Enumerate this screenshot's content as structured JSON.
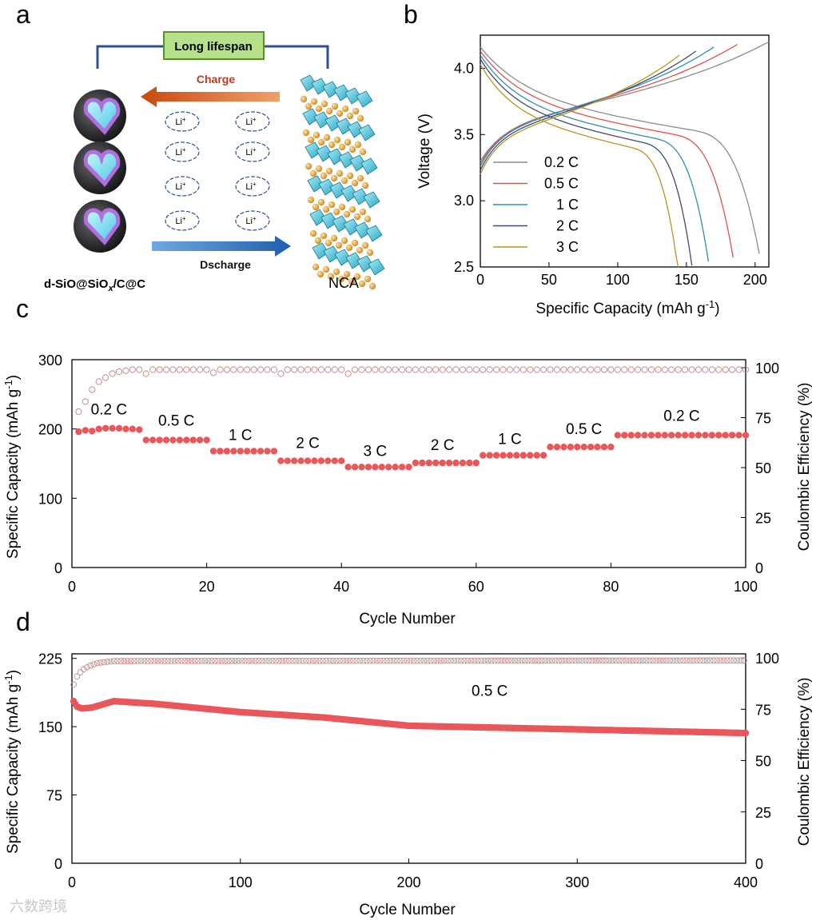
{
  "panels": {
    "a": "a",
    "b": "b",
    "c": "c",
    "d": "d"
  },
  "schematic": {
    "top_box": "Long lifespan",
    "charge_label": "Charge",
    "discharge_label": "Dscharge",
    "li_label": "Li",
    "li_superscript": "+",
    "anode_label_prefix": "d-SiO@SiO",
    "anode_label_sub": "x",
    "anode_label_suffix": "/C@C",
    "cathode_label": "NCA",
    "colors": {
      "charge": "#d55a1b",
      "discharge": "#2e75c0",
      "box_fill": "#b6e08a",
      "box_edge": "#5b8f2c",
      "connector": "#2f4f8f"
    }
  },
  "watermark": "六数跨境",
  "chart_data": [
    {
      "id": "b",
      "type": "line",
      "xlabel": "Specific Capacity (mAh g",
      "xlabel_sup": "-1",
      "xlabel_end": ")",
      "ylabel": "Voltage (V)",
      "xlim": [
        0,
        210
      ],
      "ylim": [
        2.5,
        4.25
      ],
      "xticks": [
        0,
        50,
        100,
        150,
        200
      ],
      "yticks": [
        2.5,
        3.0,
        3.5,
        4.0
      ],
      "ytick_labels": [
        "2.5",
        "3.0",
        "3.5",
        "4.0"
      ],
      "legend_position": "left",
      "series": [
        {
          "name": "0.2 C",
          "color": "#8c8c8c",
          "charge_cap": 210,
          "discharge_cap": 203,
          "v_charge_start": 3.3,
          "v_discharge_start": 4.16
        },
        {
          "name": "0.5 C",
          "color": "#d9534f",
          "charge_cap": 187,
          "discharge_cap": 184,
          "v_charge_start": 3.28,
          "v_discharge_start": 4.13
        },
        {
          "name": "1 C",
          "color": "#2f8fb5",
          "charge_cap": 170,
          "discharge_cap": 166,
          "v_charge_start": 3.26,
          "v_discharge_start": 4.1
        },
        {
          "name": "2 C",
          "color": "#3c4a78",
          "charge_cap": 157,
          "discharge_cap": 154,
          "v_charge_start": 3.23,
          "v_discharge_start": 4.07
        },
        {
          "name": "3 C",
          "color": "#b89320",
          "charge_cap": 145,
          "discharge_cap": 144,
          "v_charge_start": 3.2,
          "v_discharge_start": 4.03
        }
      ]
    },
    {
      "id": "c",
      "type": "scatter",
      "xlabel": "Cycle Number",
      "ylabel": "Specific Capacity (mAh g",
      "ylabel_sup": "-1",
      "ylabel_end": ")",
      "y2label": "Coulombic Efficiency (%)",
      "xlim": [
        0,
        100
      ],
      "ylim": [
        0,
        300
      ],
      "y2lim": [
        0,
        104
      ],
      "xticks": [
        0,
        20,
        40,
        60,
        80,
        100
      ],
      "yticks": [
        0,
        100,
        200,
        300
      ],
      "y2ticks": [
        0,
        25,
        50,
        75,
        100
      ],
      "segments": [
        {
          "rate": "0.2 C",
          "start": 1,
          "end": 10,
          "capacity": 200
        },
        {
          "rate": "0.5 C",
          "start": 11,
          "end": 20,
          "capacity": 184
        },
        {
          "rate": "1 C",
          "start": 21,
          "end": 30,
          "capacity": 168
        },
        {
          "rate": "2 C",
          "start": 31,
          "end": 40,
          "capacity": 154
        },
        {
          "rate": "3 C",
          "start": 41,
          "end": 50,
          "capacity": 145
        },
        {
          "rate": "2 C",
          "start": 51,
          "end": 60,
          "capacity": 151
        },
        {
          "rate": "1 C",
          "start": 61,
          "end": 70,
          "capacity": 162
        },
        {
          "rate": "0.5 C",
          "start": 71,
          "end": 80,
          "capacity": 174
        },
        {
          "rate": "0.2 C",
          "start": 81,
          "end": 100,
          "capacity": 191
        }
      ],
      "capacity_series": [
        {
          "x": 1,
          "y": 196
        },
        {
          "x": 2,
          "y": 198
        },
        {
          "x": 3,
          "y": 197
        },
        {
          "x": 4,
          "y": 200
        },
        {
          "x": 5,
          "y": 201
        },
        {
          "x": 6,
          "y": 201
        },
        {
          "x": 7,
          "y": 201
        },
        {
          "x": 8,
          "y": 200
        },
        {
          "x": 9,
          "y": 200
        },
        {
          "x": 10,
          "y": 199
        }
      ],
      "ce_series": [
        {
          "x": 1,
          "y": 78
        },
        {
          "x": 2,
          "y": 83
        },
        {
          "x": 3,
          "y": 89
        },
        {
          "x": 4,
          "y": 93
        },
        {
          "x": 5,
          "y": 95
        },
        {
          "x": 6,
          "y": 97
        },
        {
          "x": 7,
          "y": 98
        },
        {
          "x": 8,
          "y": 98.5
        },
        {
          "x": 9,
          "y": 99
        },
        {
          "x": 10,
          "y": 99
        },
        {
          "x": 11,
          "y": 97
        },
        {
          "x": 21,
          "y": 97.5
        },
        {
          "x": 31,
          "y": 97
        },
        {
          "x": 41,
          "y": 97
        }
      ],
      "ce_plateau": 99,
      "colors": {
        "capacity": "#e8575a",
        "ce": "#c98a8a"
      }
    },
    {
      "id": "d",
      "type": "scatter",
      "xlabel": "Cycle Number",
      "ylabel": "Specific Capacity (mAh g",
      "ylabel_sup": "-1",
      "ylabel_end": ")",
      "y2label": "Coulombic Efficiency (%)",
      "annotation": "0.5 C",
      "xlim": [
        0,
        400
      ],
      "ylim": [
        0,
        230
      ],
      "y2lim": [
        0,
        102
      ],
      "xticks": [
        0,
        100,
        200,
        300,
        400
      ],
      "yticks": [
        0,
        75,
        150,
        225
      ],
      "y2ticks": [
        0,
        25,
        50,
        75,
        100
      ],
      "capacity_trend": [
        {
          "x": 1,
          "y": 178
        },
        {
          "x": 3,
          "y": 172
        },
        {
          "x": 6,
          "y": 170
        },
        {
          "x": 12,
          "y": 171
        },
        {
          "x": 25,
          "y": 178
        },
        {
          "x": 50,
          "y": 175
        },
        {
          "x": 100,
          "y": 166
        },
        {
          "x": 150,
          "y": 160
        },
        {
          "x": 200,
          "y": 151
        },
        {
          "x": 250,
          "y": 149
        },
        {
          "x": 300,
          "y": 147
        },
        {
          "x": 350,
          "y": 145
        },
        {
          "x": 400,
          "y": 143
        }
      ],
      "ce_trend": [
        {
          "x": 1,
          "y": 87
        },
        {
          "x": 3,
          "y": 91
        },
        {
          "x": 6,
          "y": 94
        },
        {
          "x": 10,
          "y": 96
        },
        {
          "x": 15,
          "y": 97.5
        },
        {
          "x": 25,
          "y": 98.5
        },
        {
          "x": 400,
          "y": 98.8
        }
      ],
      "colors": {
        "capacity": "#e8575a",
        "ce": "#c98a8a"
      }
    }
  ]
}
